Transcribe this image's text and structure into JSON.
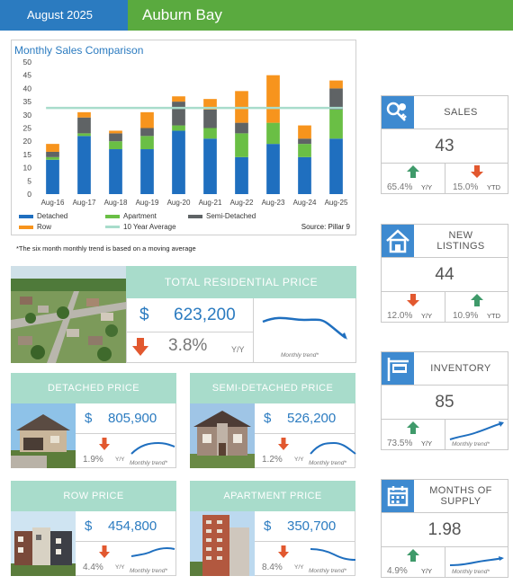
{
  "header": {
    "month": "August 2025",
    "area": "Auburn Bay"
  },
  "chart_data": {
    "type": "bar",
    "stacked": true,
    "title": "Monthly Sales Comparison",
    "source": "Source: Pillar 9",
    "categories": [
      "Aug-16",
      "Aug-17",
      "Aug-18",
      "Aug-19",
      "Aug-20",
      "Aug-21",
      "Aug-22",
      "Aug-23",
      "Aug-24",
      "Aug-25"
    ],
    "ylim": [
      0,
      50
    ],
    "yticks": [
      0,
      5,
      10,
      15,
      20,
      25,
      30,
      35,
      40,
      45,
      50
    ],
    "series": [
      {
        "name": "Detached",
        "color": "#1f6fbf",
        "values": [
          13,
          22,
          17,
          17,
          24,
          21,
          14,
          19,
          14,
          21
        ]
      },
      {
        "name": "Apartment",
        "color": "#6abf45",
        "values": [
          1,
          1,
          3,
          5,
          2,
          4,
          9,
          8,
          5,
          11
        ]
      },
      {
        "name": "Semi-Detached",
        "color": "#5f6365",
        "values": [
          2,
          6,
          3,
          3,
          9,
          7,
          4,
          0,
          2,
          8
        ]
      },
      {
        "name": "Row",
        "color": "#f7941d",
        "values": [
          3,
          2,
          1,
          6,
          2,
          4,
          12,
          18,
          5,
          3
        ]
      }
    ],
    "ten_year_average": {
      "name": "10 Year Average",
      "color": "#a8dccb",
      "value": 32.6
    },
    "grid": false,
    "legend": "bottom"
  },
  "footnote": "*The six month monthly trend is based on a moving average",
  "total": {
    "title": "TOTAL RESIDENTIAL PRICE",
    "dollar": "$",
    "price": "623,200",
    "change": "3.8%",
    "period": "Y/Y",
    "trend_label": "Monthly trend*",
    "direction": "down"
  },
  "price_cards": [
    {
      "title": "DETACHED PRICE",
      "dollar": "$",
      "price": "805,900",
      "change": "1.9%",
      "period": "Y/Y",
      "trend_label": "Monthly trend*",
      "direction": "down"
    },
    {
      "title": "SEMI-DETACHED PRICE",
      "dollar": "$",
      "price": "526,200",
      "change": "1.2%",
      "period": "Y/Y",
      "trend_label": "Monthly trend*",
      "direction": "down"
    },
    {
      "title": "ROW PRICE",
      "dollar": "$",
      "price": "454,800",
      "change": "4.4%",
      "period": "Y/Y",
      "trend_label": "Monthly trend*",
      "direction": "down"
    },
    {
      "title": "APARTMENT PRICE",
      "dollar": "$",
      "price": "350,700",
      "change": "8.4%",
      "period": "Y/Y",
      "trend_label": "Monthly trend*",
      "direction": "down"
    }
  ],
  "kpis": {
    "sales": {
      "label": "SALES",
      "icon": "keys-icon",
      "value": "43",
      "yy_change": "65.4%",
      "yy_tag": "Y/Y",
      "yy_dir": "up",
      "ytd_change": "15.0%",
      "ytd_tag": "YTD",
      "ytd_dir": "down"
    },
    "new_listings": {
      "label_line1": "NEW",
      "label_line2": "LISTINGS",
      "icon": "house-icon",
      "value": "44",
      "yy_change": "12.0%",
      "yy_tag": "Y/Y",
      "yy_dir": "down",
      "ytd_change": "10.9%",
      "ytd_tag": "YTD",
      "ytd_dir": "up"
    },
    "inventory": {
      "label": "INVENTORY",
      "icon": "for-sale-sign-icon",
      "value": "85",
      "yy_change": "73.5%",
      "yy_tag": "Y/Y",
      "yy_dir": "up",
      "trend_label": "Monthly trend*"
    },
    "months_supply": {
      "label_line1": "MONTHS OF",
      "label_line2": "SUPPLY",
      "icon": "calendar-icon",
      "value": "1.98",
      "yy_change": "4.9%",
      "yy_tag": "Y/Y",
      "yy_dir": "up",
      "trend_label": "Monthly trend*"
    }
  },
  "colors": {
    "blue": "#2b7bc0",
    "green": "#5aaa3f",
    "mint": "#a8dccb",
    "up": "#3f9a6a",
    "down": "#e2582f"
  }
}
